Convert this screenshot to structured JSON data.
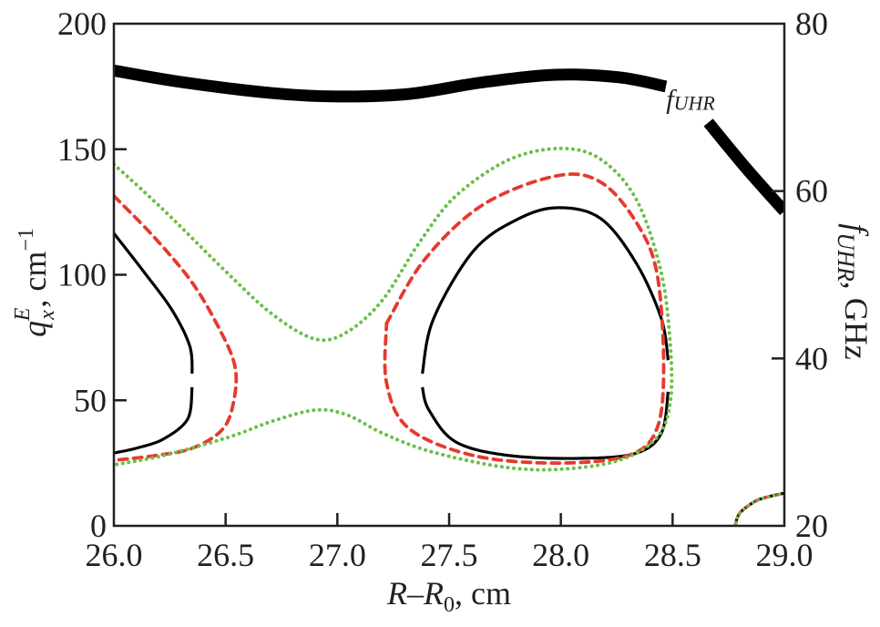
{
  "chart_data": {
    "type": "line",
    "title": "",
    "xlabel": {
      "main": "R",
      "dash": "–",
      "main2": "R",
      "sub": "0",
      "unit": ", cm"
    },
    "ylabel": {
      "main": "q",
      "sub": "x",
      "sup": "E",
      "unit": ", cm",
      "unit_sup": "−1"
    },
    "y2label": {
      "main": "f",
      "sub": "UHR",
      "unit": ", GHz"
    },
    "xlim": [
      26.0,
      29.0
    ],
    "ylim": [
      0,
      200
    ],
    "y2lim": [
      20,
      80
    ],
    "xticks": [
      26.0,
      26.5,
      27.0,
      27.5,
      28.0,
      28.5,
      29.0
    ],
    "xtick_labels": [
      "26.0",
      "26.5",
      "27.0",
      "27.5",
      "28.0",
      "28.5",
      "29.0"
    ],
    "yticks": [
      0,
      50,
      100,
      150,
      200
    ],
    "ytick_labels": [
      "0",
      "50",
      "100",
      "150",
      "200"
    ],
    "y2ticks": [
      20,
      40,
      60,
      80
    ],
    "y2tick_labels": [
      "20",
      "40",
      "60",
      "80"
    ],
    "grid": false,
    "annotations": [
      {
        "text_main": "f",
        "text_sub": "UHR",
        "x": 28.52,
        "y2": 70.8
      }
    ],
    "colors": {
      "axis": "#231f20",
      "solid": "#000000",
      "dashed": "#e53a2e",
      "dotted": "#6cbf4a"
    },
    "series": [
      {
        "name": "f_UHR",
        "axis": "right",
        "style": "thick",
        "segments": [
          {
            "x": [
              26.0,
              26.31,
              26.71,
              27.0,
              27.32,
              27.65,
              27.98,
              28.26,
              28.47
            ],
            "y": [
              74.4,
              73.0,
              71.7,
              71.3,
              71.6,
              73.0,
              73.9,
              73.6,
              72.5
            ]
          },
          {
            "x": [
              28.66,
              28.83,
              29.0
            ],
            "y": [
              68.2,
              62.7,
              57.6
            ]
          }
        ]
      },
      {
        "name": "solid-left",
        "axis": "left",
        "style": "solid",
        "segments": [
          {
            "x": [
              26.0,
              26.14,
              26.26,
              26.34,
              26.35
            ],
            "y": [
              116.5,
              100.5,
              86.0,
              71.5,
              60.6
            ]
          },
          {
            "x": [
              26.35,
              26.33,
              26.22,
              26.1,
              26.0
            ],
            "y": [
              55.2,
              42.5,
              34.5,
              30.9,
              29.0
            ]
          }
        ]
      },
      {
        "name": "solid-right-loop",
        "axis": "left",
        "style": "solid",
        "segments": [
          {
            "x": [
              27.38,
              27.43,
              27.61,
              27.81,
              27.99,
              28.18,
              28.34,
              28.45,
              28.48
            ],
            "y": [
              60.6,
              82.4,
              109.6,
              122.3,
              126.7,
              122.3,
              104.2,
              82.4,
              66.0
            ]
          },
          {
            "x": [
              28.48,
              28.45,
              28.34,
              28.1,
              27.77,
              27.53,
              27.41,
              27.38
            ],
            "y": [
              53.4,
              37.0,
              29.0,
              26.9,
              28.0,
              33.4,
              46.1,
              55.2
            ]
          }
        ]
      },
      {
        "name": "dashed-left",
        "axis": "left",
        "style": "dashed",
        "segments": [
          {
            "x": [
              26.0,
              26.18,
              26.35,
              26.47,
              26.54,
              26.54,
              26.49,
              26.35,
              26.18,
              26.0
            ],
            "y": [
              131.4,
              115.0,
              96.9,
              78.8,
              64.2,
              51.5,
              38.8,
              30.9,
              27.9,
              26.1
            ]
          }
        ]
      },
      {
        "name": "dashed-right-loop",
        "axis": "left",
        "style": "dashed",
        "segments": [
          {
            "x": [
              27.22,
              27.39,
              27.65,
              27.98,
              28.18,
              28.34,
              28.43,
              28.46,
              28.43,
              28.3,
              27.98,
              27.61,
              27.32,
              27.22,
              27.22
            ],
            "y": [
              80.6,
              106.0,
              127.8,
              139.4,
              136.8,
              120.5,
              100.5,
              64.2,
              38.8,
              28.0,
              25.0,
              28.0,
              38.8,
              57.0,
              80.6
            ]
          }
        ]
      },
      {
        "name": "dotted-outer",
        "axis": "left",
        "style": "dotted",
        "segments": [
          {
            "x": [
              26.0,
              26.22,
              26.51,
              26.71,
              26.9,
              27.04,
              27.2,
              27.37,
              27.53,
              27.77,
              28.0,
              28.18,
              28.34,
              28.45,
              28.49,
              28.49,
              28.43,
              28.26,
              27.99,
              27.73,
              27.41,
              27.2,
              27.04,
              26.9,
              26.71,
              26.51,
              26.22,
              26.0
            ],
            "y": [
              144.0,
              126.0,
              100.5,
              84.2,
              74.4,
              77.0,
              89.7,
              113.2,
              131.4,
              145.9,
              150.3,
              145.9,
              129.6,
              100.5,
              71.5,
              49.7,
              35.2,
              26.1,
              22.5,
              23.6,
              29.8,
              37.0,
              44.3,
              46.1,
              41.7,
              35.2,
              28.0,
              24.3
            ]
          }
        ]
      },
      {
        "name": "corner-curve",
        "axis": "left",
        "style": "mixed",
        "segments": [
          {
            "x": [
              28.78,
              28.8,
              28.87,
              28.93,
              29.0
            ],
            "y": [
              0.0,
              5.0,
              9.8,
              11.6,
              13.0
            ]
          }
        ]
      }
    ]
  }
}
